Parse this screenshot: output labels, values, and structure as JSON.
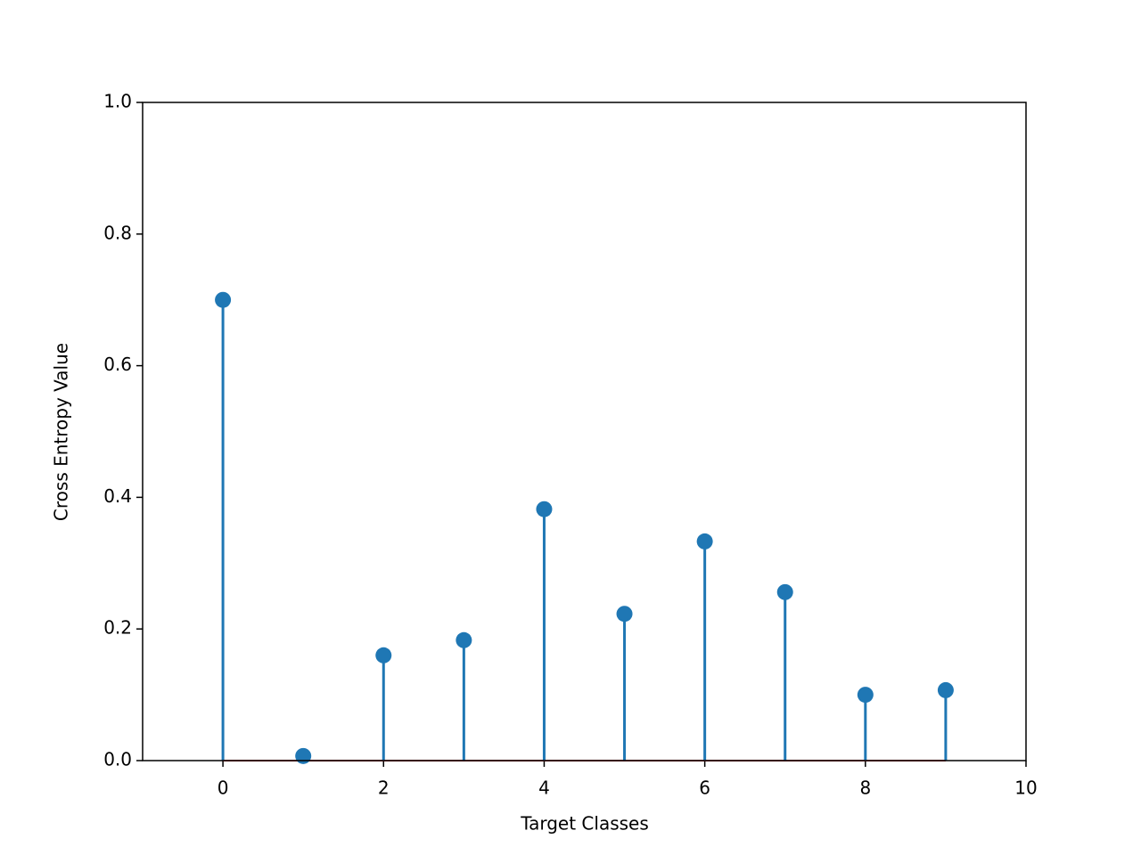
{
  "chart_data": {
    "type": "stem",
    "x_label": "Target Classes",
    "y_label": "Cross Entropy Value",
    "x": [
      0,
      1,
      2,
      3,
      4,
      5,
      6,
      7,
      8,
      9
    ],
    "values": [
      0.7,
      0.007,
      0.16,
      0.183,
      0.382,
      0.223,
      0.333,
      0.256,
      0.1,
      0.107
    ],
    "color": "#1f77b4",
    "baseline_color": "#d62728",
    "xlim": [
      -1,
      10
    ],
    "xticks": [
      0,
      2,
      4,
      6,
      8,
      10
    ],
    "ylim": [
      0,
      1
    ],
    "yticks": [
      {
        "value": 0,
        "label": "0.0"
      },
      {
        "value": 0.2,
        "label": "0.2"
      },
      {
        "value": 0.4,
        "label": "0.4"
      },
      {
        "value": 0.6,
        "label": "0.6"
      },
      {
        "value": 0.8,
        "label": "0.8"
      },
      {
        "value": 1,
        "label": "1.0"
      }
    ],
    "grid": false
  }
}
